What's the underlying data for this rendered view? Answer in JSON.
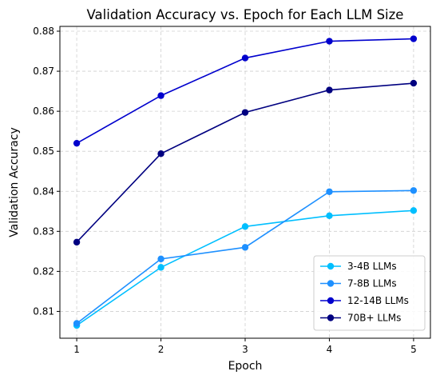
{
  "chart_data": {
    "type": "line",
    "title": "Validation Accuracy vs. Epoch for Each LLM Size",
    "xlabel": "Epoch",
    "ylabel": "Validation Accuracy",
    "x": [
      1,
      2,
      3,
      4,
      5
    ],
    "xticks": [
      "1",
      "2",
      "3",
      "4",
      "5"
    ],
    "yticks": [
      "0.81",
      "0.82",
      "0.83",
      "0.84",
      "0.85",
      "0.86",
      "0.87",
      "0.88"
    ],
    "ytick_values": [
      0.81,
      0.82,
      0.83,
      0.84,
      0.85,
      0.86,
      0.87,
      0.88
    ],
    "xlim": [
      0.8,
      5.2
    ],
    "ylim": [
      0.8033,
      0.8812
    ],
    "grid": true,
    "legend_position": "bottom-right",
    "series": [
      {
        "name": "3-4B LLMs",
        "color": "#00bfff",
        "values": [
          0.8065,
          0.821,
          0.8312,
          0.8339,
          0.8352
        ]
      },
      {
        "name": "7-8B LLMs",
        "color": "#1e90ff",
        "values": [
          0.807,
          0.8231,
          0.826,
          0.8399,
          0.8402
        ]
      },
      {
        "name": "12-14B LLMs",
        "color": "#0000cd",
        "values": [
          0.852,
          0.8639,
          0.8733,
          0.8775,
          0.8781
        ]
      },
      {
        "name": "70B+ LLMs",
        "color": "#000080",
        "values": [
          0.8273,
          0.8494,
          0.8597,
          0.8653,
          0.867
        ]
      }
    ]
  }
}
